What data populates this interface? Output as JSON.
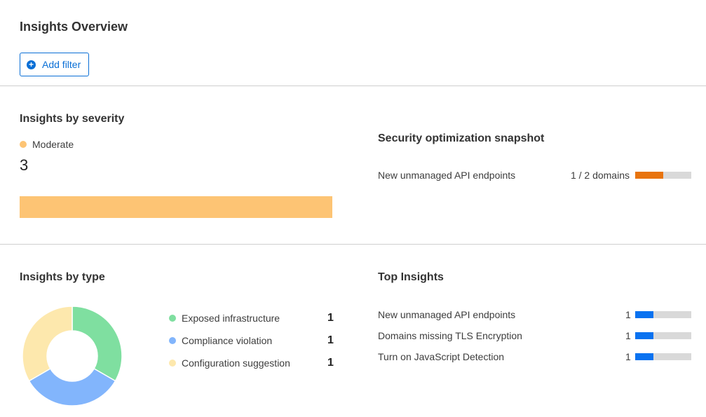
{
  "header": {
    "title": "Insights Overview",
    "add_filter_label": "Add filter"
  },
  "severity": {
    "title": "Insights by severity",
    "legend": "Moderate",
    "count": "3",
    "color": "#fdc474",
    "fraction": 1.0
  },
  "snapshot": {
    "title": "Security optimization snapshot",
    "items": [
      {
        "label": "New unmanaged API endpoints",
        "value": "1 / 2 domains",
        "fraction": 0.5,
        "color": "#e8740f"
      }
    ]
  },
  "by_type": {
    "title": "Insights by type",
    "items": [
      {
        "label": "Exposed infrastructure",
        "value": "1",
        "color": "#7fdfa0"
      },
      {
        "label": "Compliance violation",
        "value": "1",
        "color": "#82b5fc"
      },
      {
        "label": "Configuration suggestion",
        "value": "1",
        "color": "#fde8ad"
      }
    ]
  },
  "top": {
    "title": "Top Insights",
    "color": "#0a72f0",
    "items": [
      {
        "label": "New unmanaged API endpoints",
        "value": "1",
        "fraction": 0.33
      },
      {
        "label": "Domains missing TLS Encryption",
        "value": "1",
        "fraction": 0.33
      },
      {
        "label": "Turn on JavaScript Detection",
        "value": "1",
        "fraction": 0.33
      }
    ]
  }
}
